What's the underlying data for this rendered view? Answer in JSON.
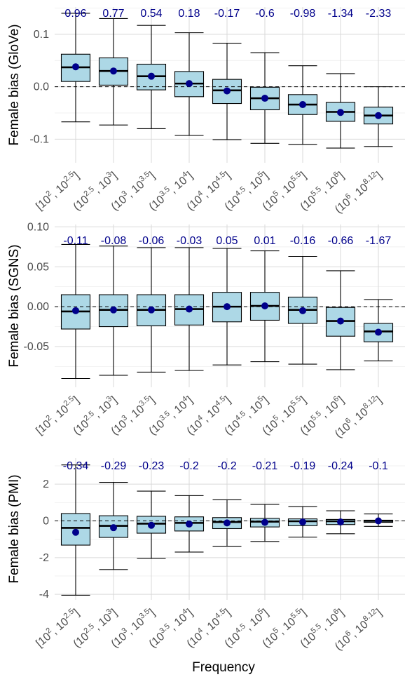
{
  "chart_data": {
    "type": "box",
    "xlabel": "Frequency",
    "categories": [
      {
        "pre": "[10",
        "p1": "2",
        "mid": ", 10",
        "p2": "2.5",
        "post": "]"
      },
      {
        "pre": "(10",
        "p1": "2.5",
        "mid": ", 10",
        "p2": "3",
        "post": "]"
      },
      {
        "pre": "(10",
        "p1": "3",
        "mid": ", 10",
        "p2": "3.5",
        "post": "]"
      },
      {
        "pre": "(10",
        "p1": "3.5",
        "mid": ", 10",
        "p2": "4",
        "post": "]"
      },
      {
        "pre": "(10",
        "p1": "4",
        "mid": ", 10",
        "p2": "4.5",
        "post": "]"
      },
      {
        "pre": "(10",
        "p1": "4.5",
        "mid": ", 10",
        "p2": "5",
        "post": "]"
      },
      {
        "pre": "(10",
        "p1": "5",
        "mid": ", 10",
        "p2": "5.5",
        "post": "]"
      },
      {
        "pre": "(10",
        "p1": "5.5",
        "mid": ", 10",
        "p2": "6",
        "post": "]"
      },
      {
        "pre": "(10",
        "p1": "6",
        "mid": ", 10",
        "p2": "8.12",
        "post": "]"
      }
    ],
    "colors": {
      "box_fill": "#add8e6",
      "mean_point": "#00008b",
      "annotation": "#00008b"
    },
    "panels": [
      {
        "ylabel": "Female bias (GloVe)",
        "ylim": [
          -0.145,
          0.152
        ],
        "yticks": [
          0.1,
          0.0,
          -0.1
        ],
        "ytick_labels": [
          "0.1",
          "0.0",
          "-0.1"
        ],
        "annotations": [
          "0.96",
          "0.77",
          "0.54",
          "0.18",
          "-0.17",
          "-0.6",
          "-0.98",
          "-1.34",
          "-2.33"
        ],
        "boxes": [
          {
            "whislo": -0.067,
            "q1": 0.01,
            "med": 0.037,
            "q3": 0.062,
            "whishi": 0.14,
            "mean": 0.038
          },
          {
            "whislo": -0.073,
            "q1": 0.003,
            "med": 0.03,
            "q3": 0.055,
            "whishi": 0.13,
            "mean": 0.03
          },
          {
            "whislo": -0.08,
            "q1": -0.006,
            "med": 0.02,
            "q3": 0.043,
            "whishi": 0.117,
            "mean": 0.02
          },
          {
            "whislo": -0.093,
            "q1": -0.019,
            "med": 0.006,
            "q3": 0.029,
            "whishi": 0.103,
            "mean": 0.006
          },
          {
            "whislo": -0.101,
            "q1": -0.032,
            "med": -0.007,
            "q3": 0.014,
            "whishi": 0.083,
            "mean": -0.008
          },
          {
            "whislo": -0.108,
            "q1": -0.044,
            "med": -0.022,
            "q3": -0.001,
            "whishi": 0.065,
            "mean": -0.022
          },
          {
            "whislo": -0.11,
            "q1": -0.053,
            "med": -0.034,
            "q3": -0.015,
            "whishi": 0.04,
            "mean": -0.034
          },
          {
            "whislo": -0.117,
            "q1": -0.066,
            "med": -0.048,
            "q3": -0.03,
            "whishi": 0.025,
            "mean": -0.049
          },
          {
            "whislo": -0.114,
            "q1": -0.071,
            "med": -0.055,
            "q3": -0.039,
            "whishi": 0.0,
            "mean": -0.055
          }
        ]
      },
      {
        "ylabel": "Female bias (SGNS)",
        "ylim": [
          -0.101,
          0.103
        ],
        "yticks": [
          0.1,
          0.05,
          0.0,
          -0.05
        ],
        "ytick_labels": [
          "0.10",
          "0.05",
          "0.00",
          "-0.05"
        ],
        "annotations": [
          "-0.11",
          "-0.08",
          "-0.06",
          "-0.03",
          "0.05",
          "0.01",
          "-0.16",
          "-0.66",
          "-1.67"
        ],
        "boxes": [
          {
            "whislo": -0.09,
            "q1": -0.028,
            "med": -0.006,
            "q3": 0.015,
            "whishi": 0.078,
            "mean": -0.005
          },
          {
            "whislo": -0.086,
            "q1": -0.025,
            "med": -0.004,
            "q3": 0.015,
            "whishi": 0.076,
            "mean": -0.004
          },
          {
            "whislo": -0.082,
            "q1": -0.024,
            "med": -0.004,
            "q3": 0.015,
            "whishi": 0.074,
            "mean": -0.004
          },
          {
            "whislo": -0.08,
            "q1": -0.023,
            "med": -0.003,
            "q3": 0.015,
            "whishi": 0.074,
            "mean": -0.003
          },
          {
            "whislo": -0.073,
            "q1": -0.019,
            "med": 0.0,
            "q3": 0.018,
            "whishi": 0.073,
            "mean": 0.0
          },
          {
            "whislo": -0.069,
            "q1": -0.017,
            "med": 0.001,
            "q3": 0.018,
            "whishi": 0.07,
            "mean": 0.001
          },
          {
            "whislo": -0.072,
            "q1": -0.021,
            "med": -0.004,
            "q3": 0.012,
            "whishi": 0.063,
            "mean": -0.005
          },
          {
            "whislo": -0.079,
            "q1": -0.037,
            "med": -0.018,
            "q3": -0.001,
            "whishi": 0.045,
            "mean": -0.018
          },
          {
            "whislo": -0.068,
            "q1": -0.044,
            "med": -0.031,
            "q3": -0.021,
            "whishi": 0.009,
            "mean": -0.032
          }
        ]
      },
      {
        "ylabel": "Female bias (PMI)",
        "ylim": [
          -4.3,
          3.42
        ],
        "yticks": [
          2,
          0,
          -2,
          -4
        ],
        "ytick_labels": [
          "2",
          "0",
          "-2",
          "-4"
        ],
        "annotations": [
          "-0.34",
          "-0.29",
          "-0.23",
          "-0.2",
          "-0.2",
          "-0.21",
          "-0.19",
          "-0.24",
          "-0.1"
        ],
        "boxes": [
          {
            "whislo": -4.05,
            "q1": -1.32,
            "med": -0.38,
            "q3": 0.4,
            "whishi": 3.05,
            "mean": -0.62
          },
          {
            "whislo": -2.65,
            "q1": -0.9,
            "med": -0.27,
            "q3": 0.28,
            "whishi": 2.1,
            "mean": -0.37
          },
          {
            "whislo": -2.05,
            "q1": -0.67,
            "med": -0.15,
            "q3": 0.25,
            "whishi": 1.62,
            "mean": -0.24
          },
          {
            "whislo": -1.7,
            "q1": -0.55,
            "med": -0.11,
            "q3": 0.22,
            "whishi": 1.38,
            "mean": -0.17
          },
          {
            "whislo": -1.38,
            "q1": -0.42,
            "med": -0.06,
            "q3": 0.18,
            "whishi": 1.15,
            "mean": -0.11
          },
          {
            "whislo": -1.12,
            "q1": -0.33,
            "med": -0.04,
            "q3": 0.14,
            "whishi": 0.9,
            "mean": -0.08
          },
          {
            "whislo": -0.88,
            "q1": -0.26,
            "med": -0.02,
            "q3": 0.11,
            "whishi": 0.78,
            "mean": -0.06
          },
          {
            "whislo": -0.7,
            "q1": -0.2,
            "med": -0.02,
            "q3": 0.08,
            "whishi": 0.55,
            "mean": -0.06
          },
          {
            "whislo": -0.3,
            "q1": -0.08,
            "med": 0.0,
            "q3": 0.04,
            "whishi": 0.38,
            "mean": 0.0
          }
        ]
      }
    ]
  }
}
